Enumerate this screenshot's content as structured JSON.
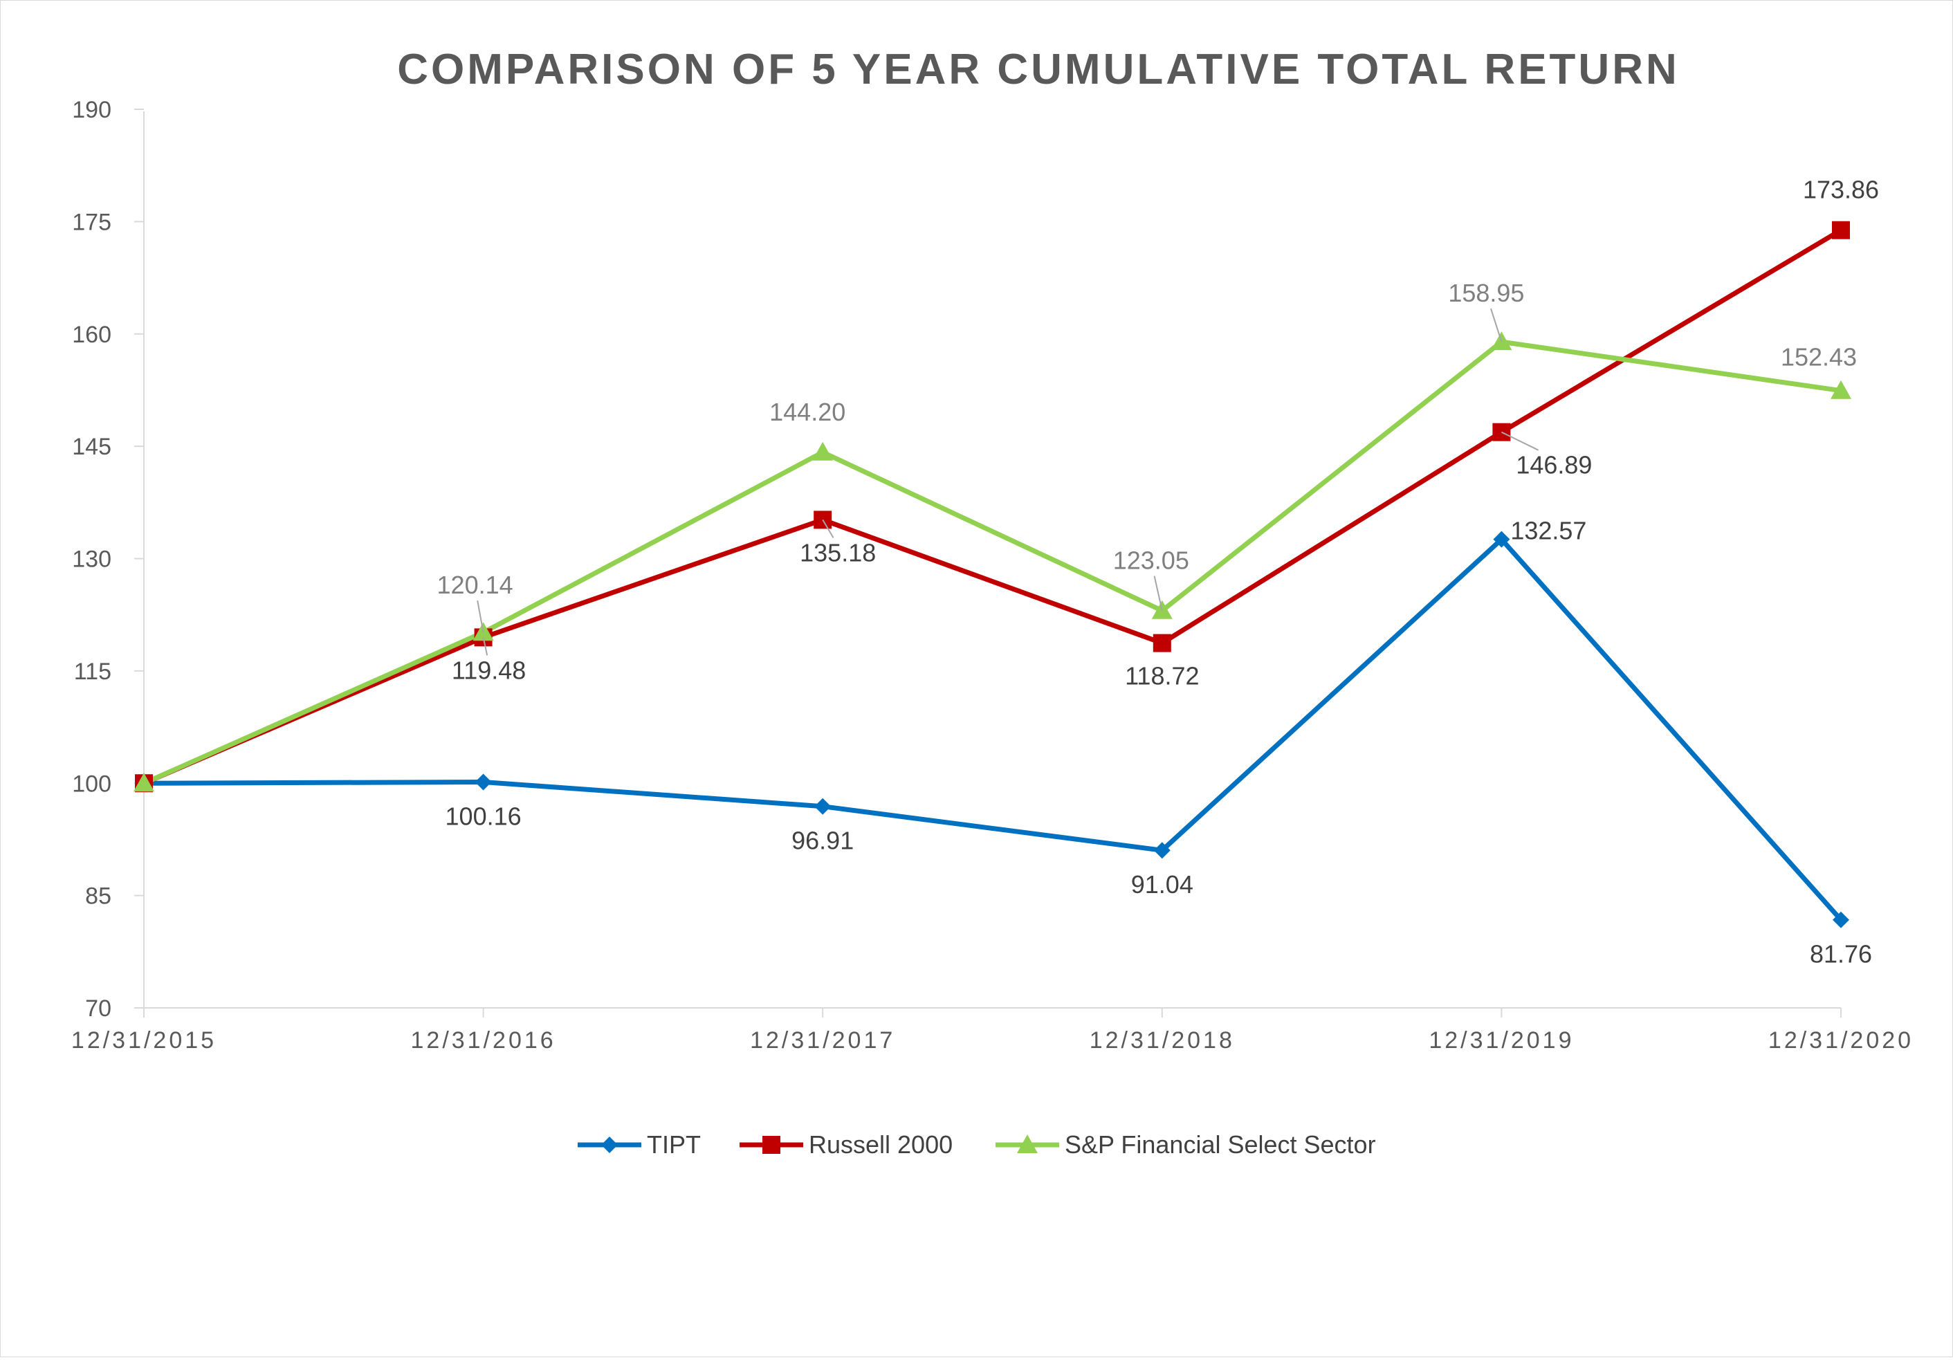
{
  "chart_data": {
    "type": "line",
    "title": "COMPARISON OF 5 YEAR CUMULATIVE TOTAL RETURN",
    "xlabel": "",
    "ylabel": "",
    "categories": [
      "12/31/2015",
      "12/31/2016",
      "12/31/2017",
      "12/31/2018",
      "12/31/2019",
      "12/31/2020"
    ],
    "ylim": [
      70,
      190
    ],
    "yticks": [
      70,
      85,
      100,
      115,
      130,
      145,
      160,
      175,
      190
    ],
    "grid": false,
    "legend": "bottom",
    "series": [
      {
        "name": "TIPT",
        "color": "#0070c0",
        "marker": "diamond",
        "values": [
          100,
          100.16,
          96.91,
          91.04,
          132.57,
          81.76
        ],
        "labels": [
          "",
          "100.16",
          "96.91",
          "91.04",
          "132.57",
          "81.76"
        ]
      },
      {
        "name": "Russell 2000",
        "color": "#c00000",
        "marker": "square",
        "values": [
          100,
          119.48,
          135.18,
          118.72,
          146.89,
          173.86
        ],
        "labels": [
          "",
          "119.48",
          "135.18",
          "118.72",
          "146.89",
          "173.86"
        ]
      },
      {
        "name": "S&P Financial Select Sector",
        "color": "#92d050",
        "marker": "triangle",
        "values": [
          100,
          120.14,
          144.2,
          123.05,
          158.95,
          152.43
        ],
        "labels": [
          "",
          "120.14",
          "144.20",
          "123.05",
          "158.95",
          "152.43"
        ]
      }
    ]
  }
}
